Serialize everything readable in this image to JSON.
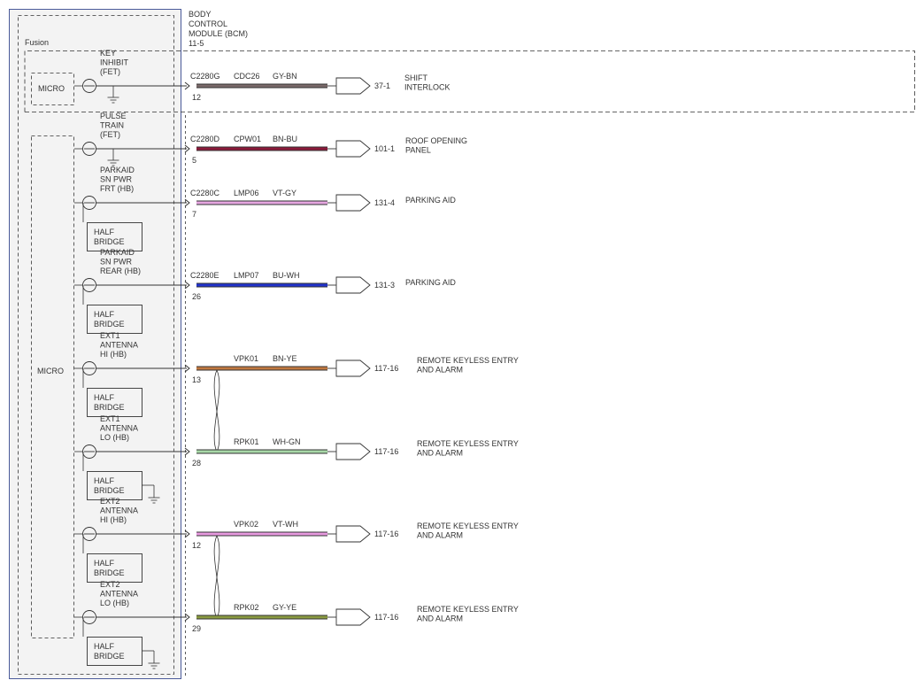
{
  "module": {
    "title_lines": [
      "BODY",
      "CONTROL",
      "MODULE (BCM)",
      "11-5"
    ],
    "vehicle": "Fusion",
    "key_micro_label": "MICRO",
    "main_micro_label": "MICRO",
    "half_bridge_label": [
      "HALF",
      "BRIDGE"
    ]
  },
  "circuits": [
    {
      "id": "key-inhibit",
      "output_label": [
        "KEY",
        "INHIBIT",
        "(FET)"
      ],
      "connector": "C2280G",
      "pin": "12",
      "circuit": "CDC26",
      "wire_color_code": "GY-BN",
      "wire_color": "#7a6a6a",
      "dest_ref": "37-1",
      "dest_label": [
        "SHIFT",
        "INTERLOCK"
      ],
      "half_bridge": false,
      "ground": true,
      "ground_on": "output"
    },
    {
      "id": "pulse-train",
      "output_label": [
        "PULSE",
        "TRAIN",
        "(FET)"
      ],
      "connector": "C2280D",
      "pin": "5",
      "circuit": "CPW01",
      "wire_color_code": "BN-BU",
      "wire_color": "#8b1a3a",
      "dest_ref": "101-1",
      "dest_label": [
        "ROOF OPENING",
        "PANEL"
      ],
      "half_bridge": false,
      "ground": true,
      "ground_on": "output"
    },
    {
      "id": "parkaid-frt",
      "output_label": [
        "PARKAID",
        "SN PWR",
        "FRT (HB)"
      ],
      "connector": "C2280C",
      "pin": "7",
      "circuit": "LMP06",
      "wire_color_code": "VT-GY",
      "wire_color": "#e6a6e0",
      "dest_ref": "131-4",
      "dest_label": [
        "PARKING AID"
      ],
      "half_bridge": true,
      "ground": false
    },
    {
      "id": "parkaid-rear",
      "output_label": [
        "PARKAID",
        "SN PWR",
        "REAR (HB)"
      ],
      "connector": "C2280E",
      "pin": "26",
      "circuit": "LMP07",
      "wire_color_code": "BU-WH",
      "wire_color": "#2233cc",
      "dest_ref": "131-3",
      "dest_label": [
        "PARKING AID"
      ],
      "half_bridge": true,
      "ground": false
    },
    {
      "id": "ext1-hi",
      "output_label": [
        "EXT1",
        "ANTENNA",
        "HI (HB)"
      ],
      "connector": "",
      "pin": "13",
      "circuit": "VPK01",
      "wire_color_code": "BN-YE",
      "wire_color": "#c07840",
      "dest_ref": "117-16",
      "dest_label": [
        "REMOTE KEYLESS ENTRY",
        "AND ALARM"
      ],
      "half_bridge": true,
      "ground": false
    },
    {
      "id": "ext1-lo",
      "output_label": [
        "EXT1",
        "ANTENNA",
        "LO (HB)"
      ],
      "connector": "",
      "pin": "28",
      "circuit": "RPK01",
      "wire_color_code": "WH-GN",
      "wire_color": "#a8d8a8",
      "dest_ref": "117-16",
      "dest_label": [
        "REMOTE KEYLESS ENTRY",
        "AND ALARM"
      ],
      "half_bridge": true,
      "ground": true,
      "ground_on": "bridge"
    },
    {
      "id": "ext2-hi",
      "output_label": [
        "EXT2",
        "ANTENNA",
        "HI (HB)"
      ],
      "connector": "",
      "pin": "12",
      "circuit": "VPK02",
      "wire_color_code": "VT-WH",
      "wire_color": "#e89ae0",
      "dest_ref": "117-16",
      "dest_label": [
        "REMOTE KEYLESS ENTRY",
        "AND ALARM"
      ],
      "half_bridge": true,
      "ground": false
    },
    {
      "id": "ext2-lo",
      "output_label": [
        "EXT2",
        "ANTENNA",
        "LO (HB)"
      ],
      "connector": "",
      "pin": "29",
      "circuit": "RPK02",
      "wire_color_code": "GY-YE",
      "wire_color": "#8a9a40",
      "dest_ref": "117-16",
      "dest_label": [
        "REMOTE KEYLESS ENTRY",
        "AND ALARM"
      ],
      "half_bridge": true,
      "ground": true,
      "ground_on": "bridge"
    }
  ],
  "colors": {
    "module_border": "#4a5a9a",
    "module_fill": "#f3f3f3",
    "dashed": "#333333",
    "line": "#333333"
  }
}
